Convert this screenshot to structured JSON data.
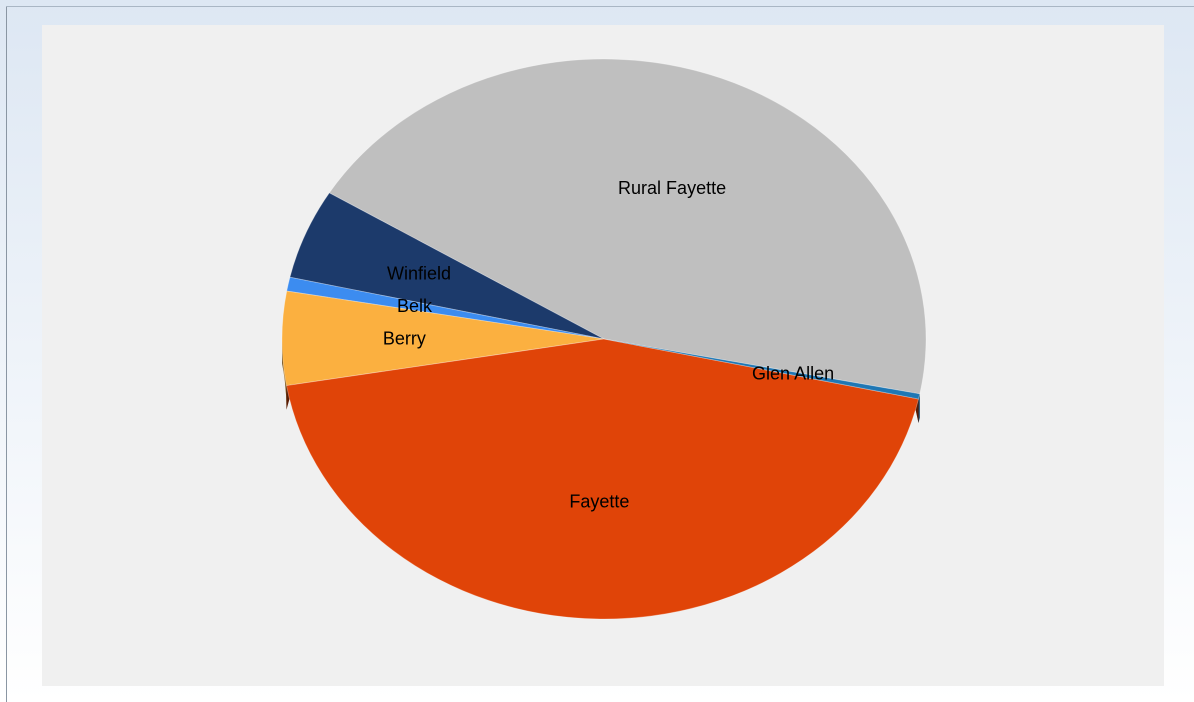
{
  "chart_data": {
    "type": "pie",
    "style": "3d",
    "title": "",
    "legend": "none",
    "categories": [
      "Rural Fayette",
      "Winfield",
      "Belk",
      "Berry",
      "Fayette",
      "Glen Allen"
    ],
    "values": [
      44.4,
      5.2,
      0.8,
      5.4,
      43.9,
      0.3
    ],
    "colors": [
      "#bfbfbf",
      "#1c3a6b",
      "#3c8cf0",
      "#fbb040",
      "#e04408",
      "#1f77b4"
    ],
    "plot_background": "#f0f0f0"
  }
}
